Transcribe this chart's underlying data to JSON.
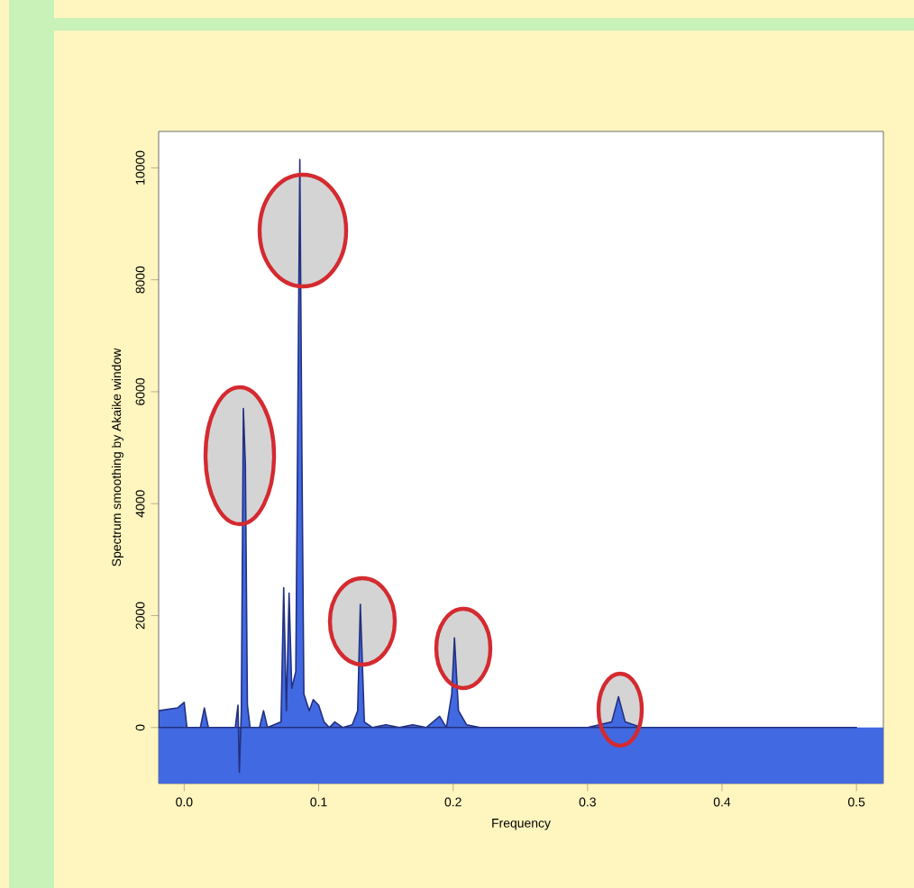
{
  "chart_data": {
    "type": "area",
    "xlabel": "Frequency",
    "ylabel": "Spectrum smoothing by Akaike window",
    "color": "#4169e1",
    "x": [
      -0.019,
      -0.005,
      0.0,
      0.002,
      0.012,
      0.015,
      0.018,
      0.038,
      0.04,
      0.041,
      0.0425,
      0.044,
      0.0455,
      0.047,
      0.049,
      0.056,
      0.059,
      0.062,
      0.072,
      0.074,
      0.076,
      0.078,
      0.08,
      0.083,
      0.086,
      0.0875,
      0.089,
      0.093,
      0.096,
      0.1,
      0.104,
      0.108,
      0.112,
      0.118,
      0.125,
      0.129,
      0.131,
      0.134,
      0.14,
      0.15,
      0.16,
      0.17,
      0.18,
      0.19,
      0.195,
      0.199,
      0.201,
      0.204,
      0.21,
      0.22,
      0.3,
      0.318,
      0.323,
      0.328,
      0.34,
      0.5
    ],
    "values": [
      300,
      350,
      450,
      0,
      0,
      350,
      0,
      0,
      400,
      -800,
      300,
      5700,
      4700,
      400,
      0,
      0,
      300,
      0,
      100,
      2500,
      300,
      2400,
      700,
      1000,
      10150,
      5000,
      600,
      300,
      500,
      400,
      100,
      0,
      100,
      0,
      50,
      300,
      2200,
      100,
      0,
      50,
      0,
      50,
      0,
      200,
      0,
      600,
      1600,
      300,
      50,
      0,
      0,
      100,
      550,
      100,
      0,
      0
    ],
    "xlim": [
      -0.019,
      0.52
    ],
    "ylim": [
      -1000,
      10650
    ],
    "xticks": [
      {
        "value": 0,
        "label": "0.0"
      },
      {
        "value": 0.1,
        "label": "0.1"
      },
      {
        "value": 0.2,
        "label": "0.2"
      },
      {
        "value": 0.3,
        "label": "0.3"
      },
      {
        "value": 0.4,
        "label": "0.4"
      },
      {
        "value": 0.5,
        "label": "0.5"
      }
    ],
    "yticks": [
      0,
      2000,
      4000,
      6000,
      8000,
      10000
    ],
    "grid": false,
    "bands": [
      {
        "axis": "y",
        "from": -1000,
        "to": 0,
        "color": "#4169e1"
      }
    ]
  }
}
